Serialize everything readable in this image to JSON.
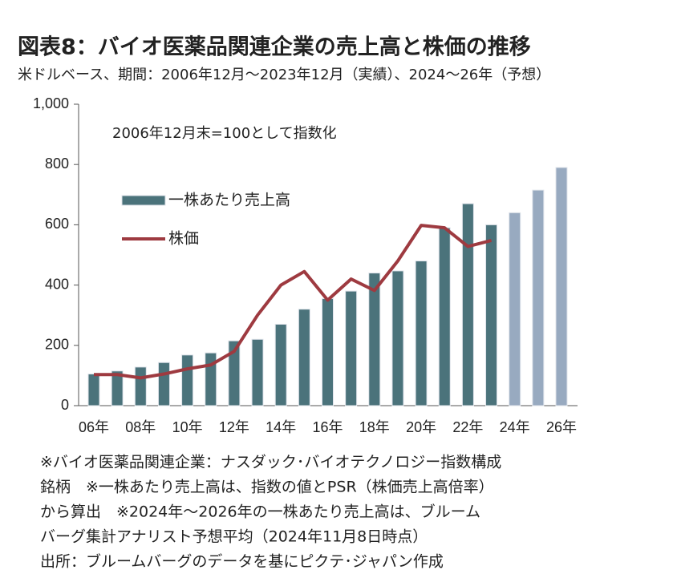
{
  "chart_data": {
    "type": "bar_line",
    "title": "図表8：バイオ医薬品関連企業の売上高と株価の推移",
    "subtitle": "米ドルベース、期間：2006年12月～2023年12月（実績）、2024～26年（予想）",
    "annotation": "2006年12月末=100として指数化",
    "categories": [
      "06年",
      null,
      "08年",
      null,
      "10年",
      null,
      "12年",
      null,
      "14年",
      null,
      "16年",
      null,
      "18年",
      null,
      "20年",
      null,
      "22年",
      null,
      "24年",
      null,
      "26年"
    ],
    "series": [
      {
        "name": "一株あたり売上高",
        "kind": "bar",
        "color": "#4b737b",
        "colors": [
          "#4b737b",
          "#4b737b",
          "#4b737b",
          "#4b737b",
          "#4b737b",
          "#4b737b",
          "#4b737b",
          "#4b737b",
          "#4b737b",
          "#4b737b",
          "#4b737b",
          "#4b737b",
          "#4b737b",
          "#4b737b",
          "#4b737b",
          "#4b737b",
          "#4b737b",
          "#4b737b",
          "#98aac0",
          "#98aac0",
          "#98aac0"
        ],
        "values": [
          105,
          115,
          128,
          143,
          168,
          175,
          215,
          220,
          270,
          320,
          355,
          380,
          440,
          447,
          480,
          590,
          670,
          600,
          640,
          715,
          790
        ]
      },
      {
        "name": "株価",
        "kind": "line",
        "color": "#9e3a40",
        "values": [
          103,
          103,
          92,
          105,
          122,
          135,
          180,
          300,
          400,
          445,
          350,
          420,
          382,
          480,
          598,
          590,
          528,
          548,
          null,
          null,
          null
        ]
      }
    ],
    "ylim": [
      0,
      1000
    ],
    "yticks": [
      0,
      200,
      400,
      600,
      800,
      {
        "value": 1000,
        "label": "1,000"
      }
    ],
    "notes": [
      "※バイオ医薬品関連企業：ナスダック･バイオテクノロジー指数構成",
      "銘柄　※一株あたり売上高は、指数の値とPSR（株価売上高倍率）",
      "から算出　※2024年～2026年の一株あたり売上高は、ブルーム",
      "バーグ集計アナリスト予想平均（2024年11月8日時点）",
      "出所：ブルームバーグのデータを基にピクテ･ジャパン作成"
    ]
  }
}
